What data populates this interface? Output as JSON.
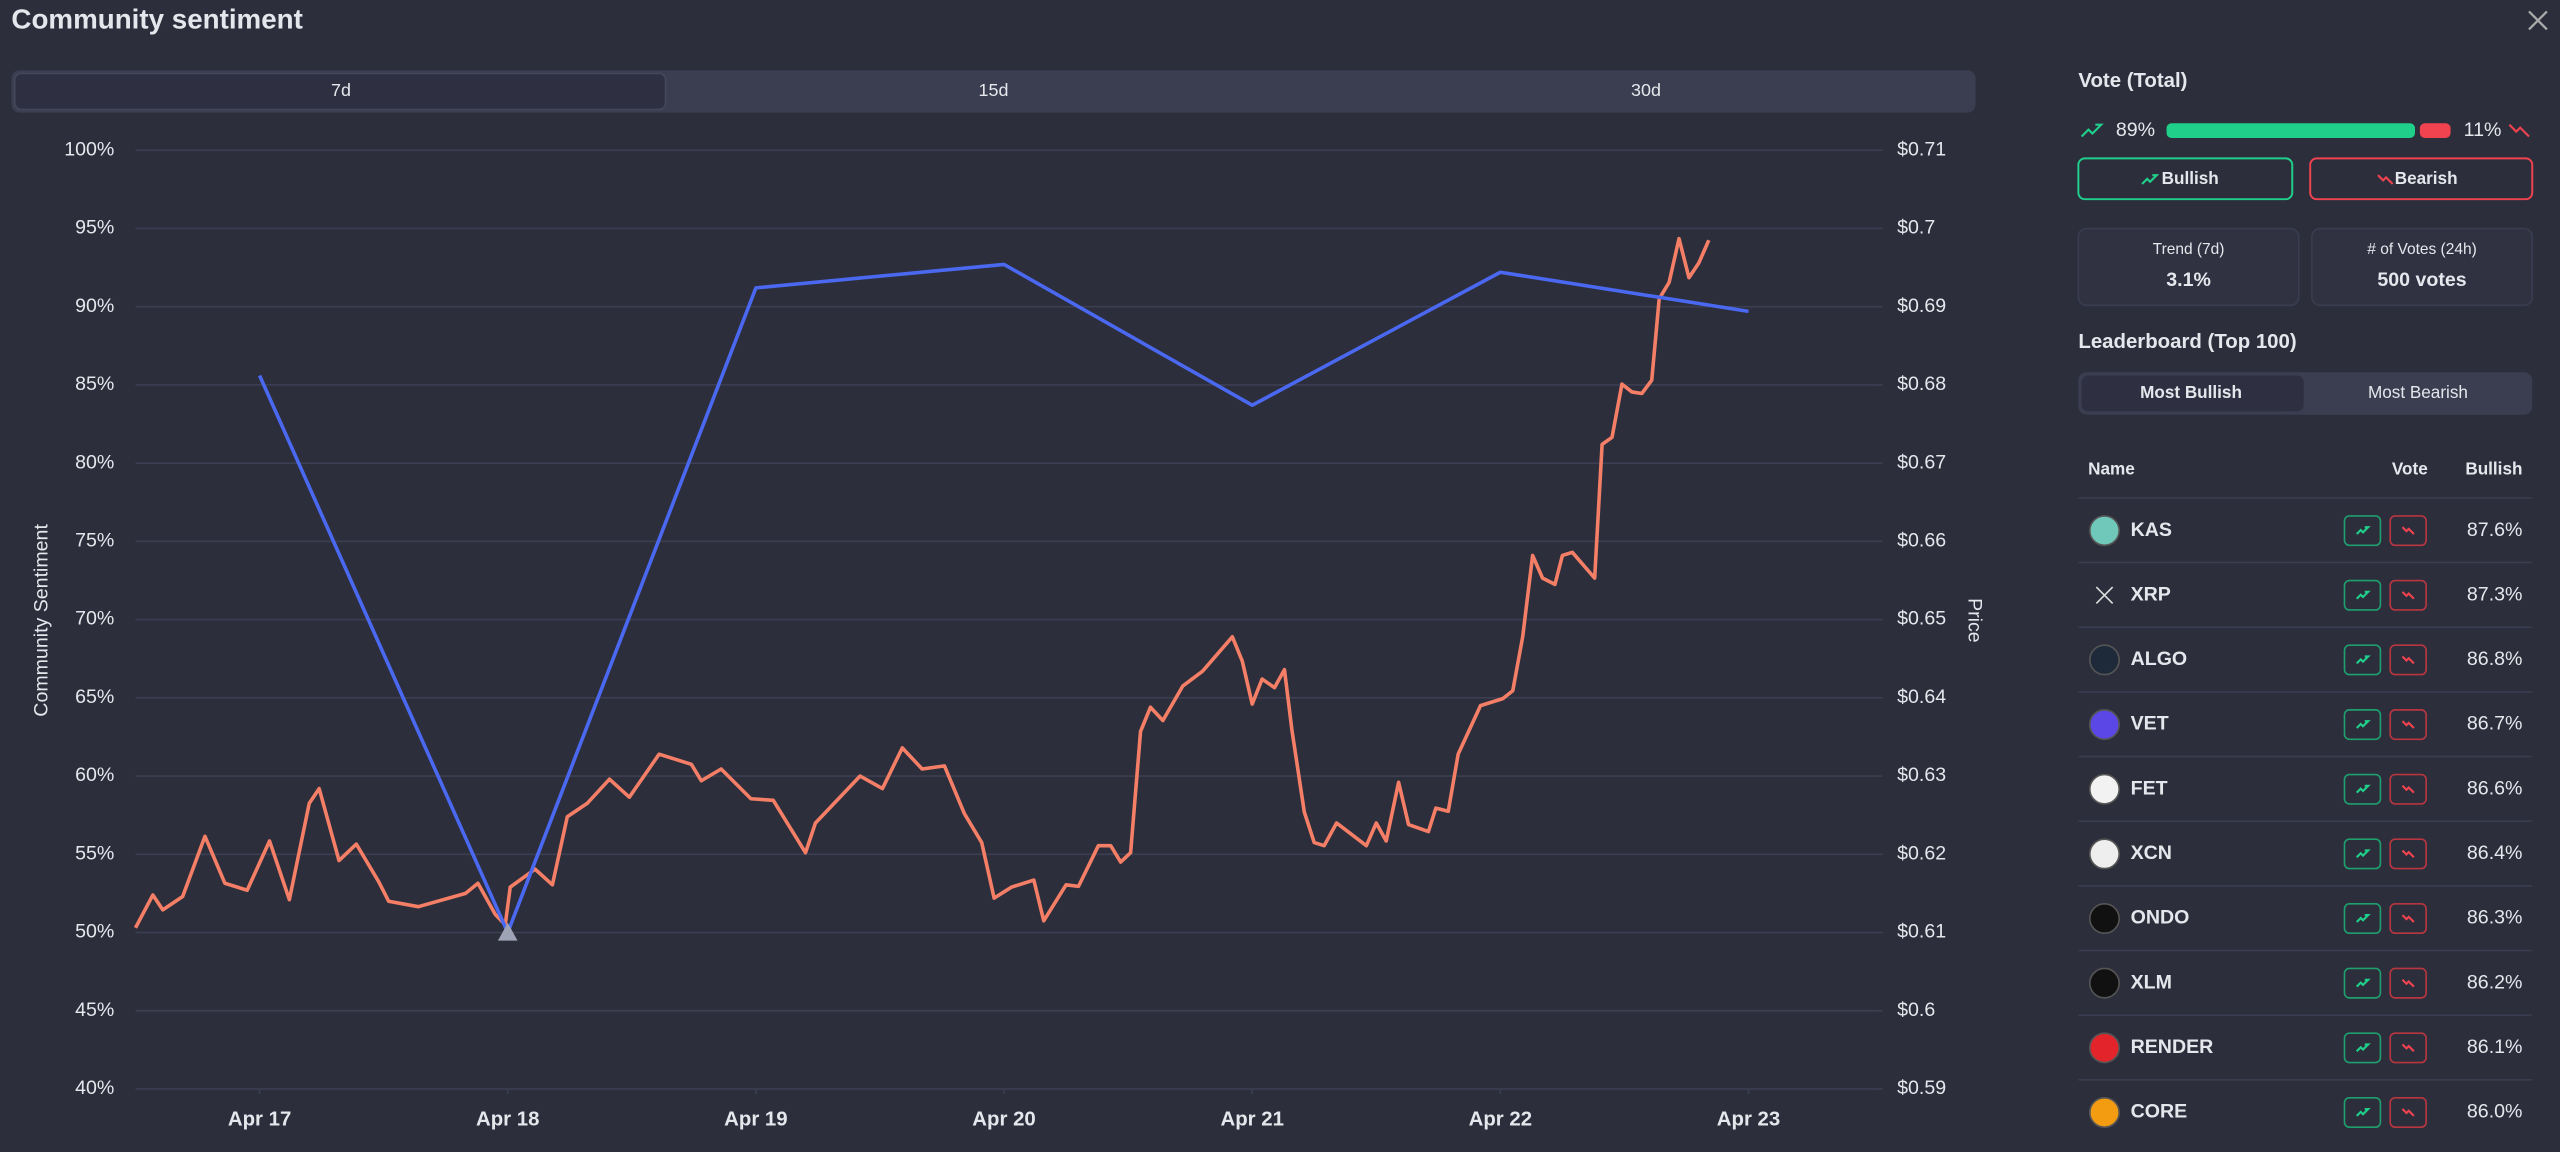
{
  "header": {
    "title": "Community sentiment"
  },
  "tabs": [
    "7d",
    "15d",
    "30d"
  ],
  "chart_data": {
    "type": "line",
    "y_label": "Community Sentiment",
    "y2_label": "Price",
    "xlim": [
      -0.5,
      6.52
    ],
    "xticks": [
      {
        "value": 0,
        "label": "Apr 17"
      },
      {
        "value": 1,
        "label": "Apr 18"
      },
      {
        "value": 2,
        "label": "Apr 19"
      },
      {
        "value": 3,
        "label": "Apr 20"
      },
      {
        "value": 4,
        "label": "Apr 21"
      },
      {
        "value": 5,
        "label": "Apr 22"
      },
      {
        "value": 6,
        "label": "Apr 23"
      }
    ],
    "ylim": [
      40,
      100
    ],
    "yticks": [
      {
        "value": 100,
        "label": "100%"
      },
      {
        "value": 95,
        "label": "95%"
      },
      {
        "value": 90,
        "label": "90%"
      },
      {
        "value": 85,
        "label": "85%"
      },
      {
        "value": 80,
        "label": "80%"
      },
      {
        "value": 75,
        "label": "75%"
      },
      {
        "value": 70,
        "label": "70%"
      },
      {
        "value": 65,
        "label": "65%"
      },
      {
        "value": 60,
        "label": "60%"
      },
      {
        "value": 55,
        "label": "55%"
      },
      {
        "value": 50,
        "label": "50%"
      },
      {
        "value": 45,
        "label": "45%"
      },
      {
        "value": 40,
        "label": "40%"
      }
    ],
    "y2lim": [
      0.59,
      0.71
    ],
    "y2ticks": [
      {
        "value": 0.71,
        "label": "$0.71"
      },
      {
        "value": 0.7,
        "label": "$0.7"
      },
      {
        "value": 0.69,
        "label": "$0.69"
      },
      {
        "value": 0.68,
        "label": "$0.68"
      },
      {
        "value": 0.67,
        "label": "$0.67"
      },
      {
        "value": 0.66,
        "label": "$0.66"
      },
      {
        "value": 0.65,
        "label": "$0.65"
      },
      {
        "value": 0.64,
        "label": "$0.64"
      },
      {
        "value": 0.63,
        "label": "$0.63"
      },
      {
        "value": 0.62,
        "label": "$0.62"
      },
      {
        "value": 0.61,
        "label": "$0.61"
      },
      {
        "value": 0.6,
        "label": "$0.6"
      },
      {
        "value": 0.59,
        "label": "$0.59"
      }
    ],
    "grid": true,
    "series": [
      {
        "color": "#4a68f0",
        "x": [
          0,
          1,
          2,
          3,
          4,
          5,
          6
        ],
        "values": [
          85.6,
          50,
          91.2,
          92.7,
          83.7,
          92.2,
          89.7
        ]
      },
      {
        "color": "#f47f66",
        "axis": "y2",
        "x": [
          -0.5,
          -0.43,
          -0.39,
          -0.31,
          -0.22,
          -0.14,
          -0.05,
          0.04,
          0.12,
          0.2,
          0.24,
          0.32,
          0.39,
          0.48,
          0.52,
          0.64,
          0.83,
          0.88,
          0.95,
          0.99,
          1.01,
          1.11,
          1.18,
          1.24,
          1.32,
          1.41,
          1.49,
          1.61,
          1.74,
          1.78,
          1.86,
          1.98,
          2.07,
          2.2,
          2.24,
          2.42,
          2.51,
          2.59,
          2.67,
          2.76,
          2.84,
          2.91,
          2.96,
          3.03,
          3.12,
          3.16,
          3.25,
          3.3,
          3.38,
          3.43,
          3.47,
          3.51,
          3.55,
          3.59,
          3.64,
          3.72,
          3.8,
          3.92,
          3.96,
          4.0,
          4.04,
          4.09,
          4.13,
          4.16,
          4.21,
          4.25,
          4.29,
          4.34,
          4.46,
          4.5,
          4.54,
          4.59,
          4.63,
          4.71,
          4.74,
          4.79,
          4.83,
          4.92,
          5.01,
          5.05,
          5.09,
          5.13,
          5.17,
          5.22,
          5.25,
          5.29,
          5.38,
          5.41,
          5.45,
          5.49,
          5.53,
          5.57,
          5.61,
          5.64,
          5.68,
          5.72,
          5.76,
          5.8,
          5.84
        ],
        "values": [
          0.6106,
          0.6148,
          0.6129,
          0.6146,
          0.6223,
          0.6163,
          0.6154,
          0.6217,
          0.6142,
          0.6265,
          0.6284,
          0.6192,
          0.6213,
          0.6165,
          0.614,
          0.6133,
          0.615,
          0.6163,
          0.6123,
          0.611,
          0.6158,
          0.6181,
          0.6161,
          0.6248,
          0.6265,
          0.6296,
          0.6273,
          0.6328,
          0.6315,
          0.6294,
          0.6309,
          0.6271,
          0.6269,
          0.6202,
          0.624,
          0.63,
          0.6284,
          0.6336,
          0.6309,
          0.6313,
          0.6252,
          0.6215,
          0.6144,
          0.6158,
          0.6167,
          0.6115,
          0.6161,
          0.6159,
          0.6211,
          0.6211,
          0.619,
          0.6202,
          0.6357,
          0.6388,
          0.6371,
          0.6415,
          0.6434,
          0.6478,
          0.6447,
          0.6392,
          0.6424,
          0.6413,
          0.6436,
          0.6359,
          0.6254,
          0.6215,
          0.6211,
          0.624,
          0.6211,
          0.624,
          0.6217,
          0.6292,
          0.6238,
          0.6229,
          0.6259,
          0.6255,
          0.6328,
          0.639,
          0.6399,
          0.6409,
          0.6478,
          0.6582,
          0.6553,
          0.6545,
          0.6582,
          0.6586,
          0.6553,
          0.6724,
          0.6733,
          0.6801,
          0.6791,
          0.6789,
          0.6806,
          0.691,
          0.6931,
          0.6987,
          0.6937,
          0.6956,
          0.6985
        ]
      }
    ]
  },
  "sidebar": {
    "vote_title": "Vote (Total)",
    "bullish": {
      "value": 89,
      "label": "89%"
    },
    "bearish": {
      "value": 11,
      "label": "11%"
    },
    "buttons": [
      "Bullish",
      "Bearish"
    ],
    "stats": [
      {
        "label": "Trend (7d)",
        "value": "3.1%"
      },
      {
        "label": "# of Votes (24h)",
        "value": "500 votes"
      }
    ],
    "leaderboard_title": "Leaderboard (Top 100)",
    "leaderboard_tabs": [
      "Most Bullish",
      "Most Bearish"
    ],
    "table": {
      "columns": [
        "Name",
        "Vote",
        "Bullish"
      ],
      "rows": [
        [
          "KAS",
          "87.6%"
        ],
        [
          "XRP",
          "87.3%"
        ],
        [
          "ALGO",
          "86.8%"
        ],
        [
          "VET",
          "86.7%"
        ],
        [
          "FET",
          "86.6%"
        ],
        [
          "XCN",
          "86.4%"
        ],
        [
          "ONDO",
          "86.3%"
        ],
        [
          "XLM",
          "86.2%"
        ],
        [
          "RENDER",
          "86.1%"
        ],
        [
          "CORE",
          "86.0%"
        ]
      ]
    }
  }
}
